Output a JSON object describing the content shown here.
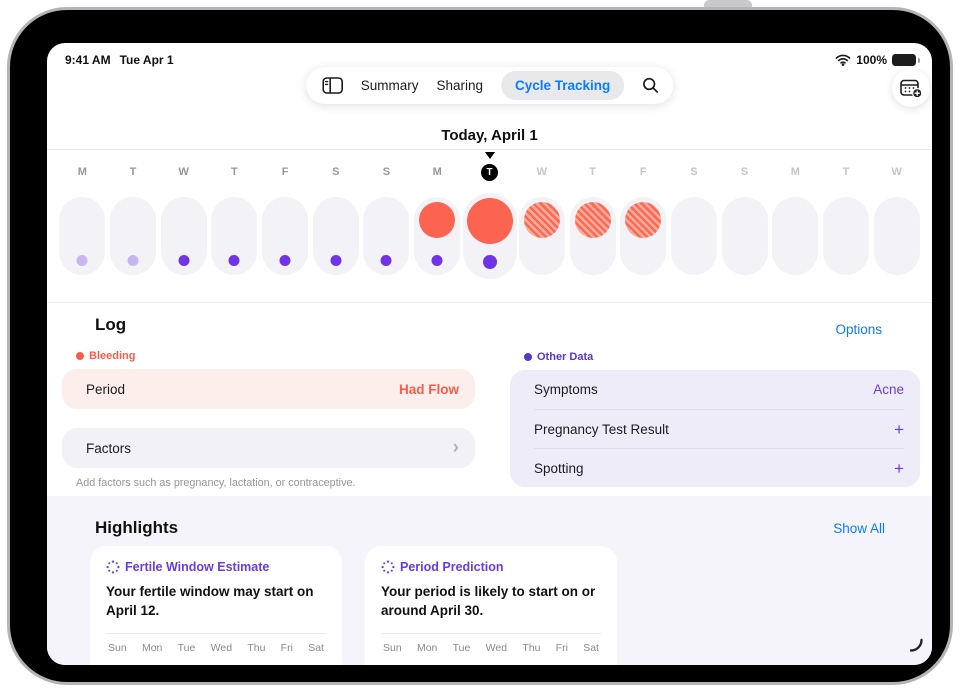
{
  "status_bar": {
    "time": "9:41 AM",
    "date": "Tue Apr 1",
    "battery_percent": "100%"
  },
  "toolbar": {
    "tabs": [
      {
        "label": "Summary",
        "active": false
      },
      {
        "label": "Sharing",
        "active": false
      },
      {
        "label": "Cycle Tracking",
        "active": true
      }
    ]
  },
  "timeline": {
    "title": "Today, April 1",
    "days": [
      {
        "letter": "M",
        "phase": "past",
        "dot": "light",
        "period": "none"
      },
      {
        "letter": "T",
        "phase": "past",
        "dot": "light",
        "period": "none"
      },
      {
        "letter": "W",
        "phase": "past",
        "dot": "dark",
        "period": "none"
      },
      {
        "letter": "T",
        "phase": "past",
        "dot": "dark",
        "period": "none"
      },
      {
        "letter": "F",
        "phase": "past",
        "dot": "dark",
        "period": "none"
      },
      {
        "letter": "S",
        "phase": "past",
        "dot": "dark",
        "period": "none"
      },
      {
        "letter": "S",
        "phase": "past",
        "dot": "dark",
        "period": "none"
      },
      {
        "letter": "M",
        "phase": "past",
        "dot": "dark",
        "period": "logged"
      },
      {
        "letter": "T",
        "phase": "today",
        "dot": "dark",
        "period": "logged"
      },
      {
        "letter": "W",
        "phase": "future",
        "dot": "none",
        "period": "predicted"
      },
      {
        "letter": "T",
        "phase": "future",
        "dot": "none",
        "period": "predicted"
      },
      {
        "letter": "F",
        "phase": "future",
        "dot": "none",
        "period": "predicted"
      },
      {
        "letter": "S",
        "phase": "future",
        "dot": "none",
        "period": "none"
      },
      {
        "letter": "S",
        "phase": "future",
        "dot": "none",
        "period": "none"
      },
      {
        "letter": "M",
        "phase": "future",
        "dot": "none",
        "period": "none"
      },
      {
        "letter": "T",
        "phase": "future",
        "dot": "none",
        "period": "none"
      },
      {
        "letter": "W",
        "phase": "future",
        "dot": "none",
        "period": "none"
      }
    ]
  },
  "log": {
    "heading": "Log",
    "options_link": "Options",
    "bleeding_label": "Bleeding",
    "period_row": {
      "label": "Period",
      "value": "Had Flow"
    },
    "factors_row": {
      "label": "Factors"
    },
    "factors_hint": "Add factors such as pregnancy, lactation, or contraceptive.",
    "other_data_label": "Other Data",
    "other_rows": [
      {
        "label": "Symptoms",
        "value": "Acne"
      },
      {
        "label": "Pregnancy Test Result",
        "value": "+"
      },
      {
        "label": "Spotting",
        "value": "+"
      }
    ]
  },
  "highlights": {
    "heading": "Highlights",
    "show_all_link": "Show All",
    "weekdays": [
      "Sun",
      "Mon",
      "Tue",
      "Wed",
      "Thu",
      "Fri",
      "Sat"
    ],
    "cards": [
      {
        "title": "Fertile Window Estimate",
        "body": "Your fertile window may start on April 12."
      },
      {
        "title": "Period Prediction",
        "body": "Your period is likely to start on or around April 30."
      }
    ]
  },
  "colors": {
    "accent_blue": "#0A7CFF",
    "period_red": "#FA6450",
    "log_purple": "#7033E6",
    "light_purple_dot": "#C9B6F1",
    "other_data_card": "#EFECFA",
    "period_row_bg": "#FCEEEA"
  }
}
